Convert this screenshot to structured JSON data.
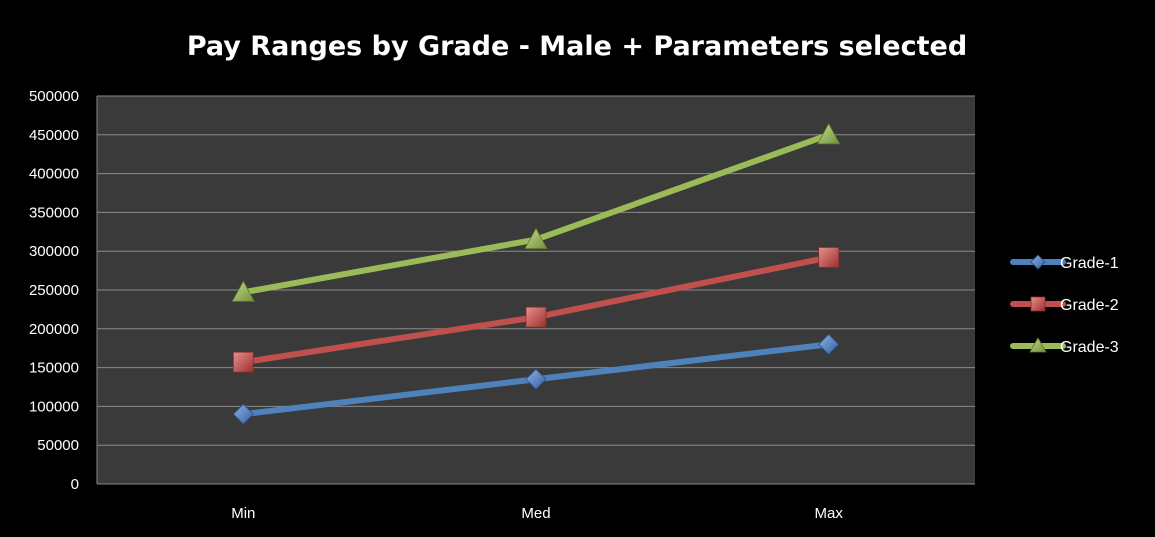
{
  "chart_data": {
    "type": "line",
    "title": "Pay Ranges by Grade - Male + Parameters selected",
    "xlabel": "",
    "ylabel": "",
    "categories": [
      "Min",
      "Med",
      "Max"
    ],
    "ylim": [
      0,
      500000
    ],
    "y_ticks": [
      "0",
      "50000",
      "100000",
      "150000",
      "200000",
      "250000",
      "300000",
      "350000",
      "400000",
      "450000",
      "500000"
    ],
    "grid": true,
    "legend_position": "right",
    "series": [
      {
        "name": "Grade-1",
        "values": [
          90000,
          135000,
          180000
        ],
        "color": "#4f81bd",
        "marker": "diamond"
      },
      {
        "name": "Grade-2",
        "values": [
          157000,
          215000,
          292000
        ],
        "color": "#c0504d",
        "marker": "square"
      },
      {
        "name": "Grade-3",
        "values": [
          247000,
          315000,
          450000
        ],
        "color": "#9bbb59",
        "marker": "triangle"
      }
    ],
    "colors": {
      "background": "#000000",
      "plot_area": "#3a3a3a",
      "gridline": "#8a8a8a",
      "text": "#ffffff"
    }
  }
}
